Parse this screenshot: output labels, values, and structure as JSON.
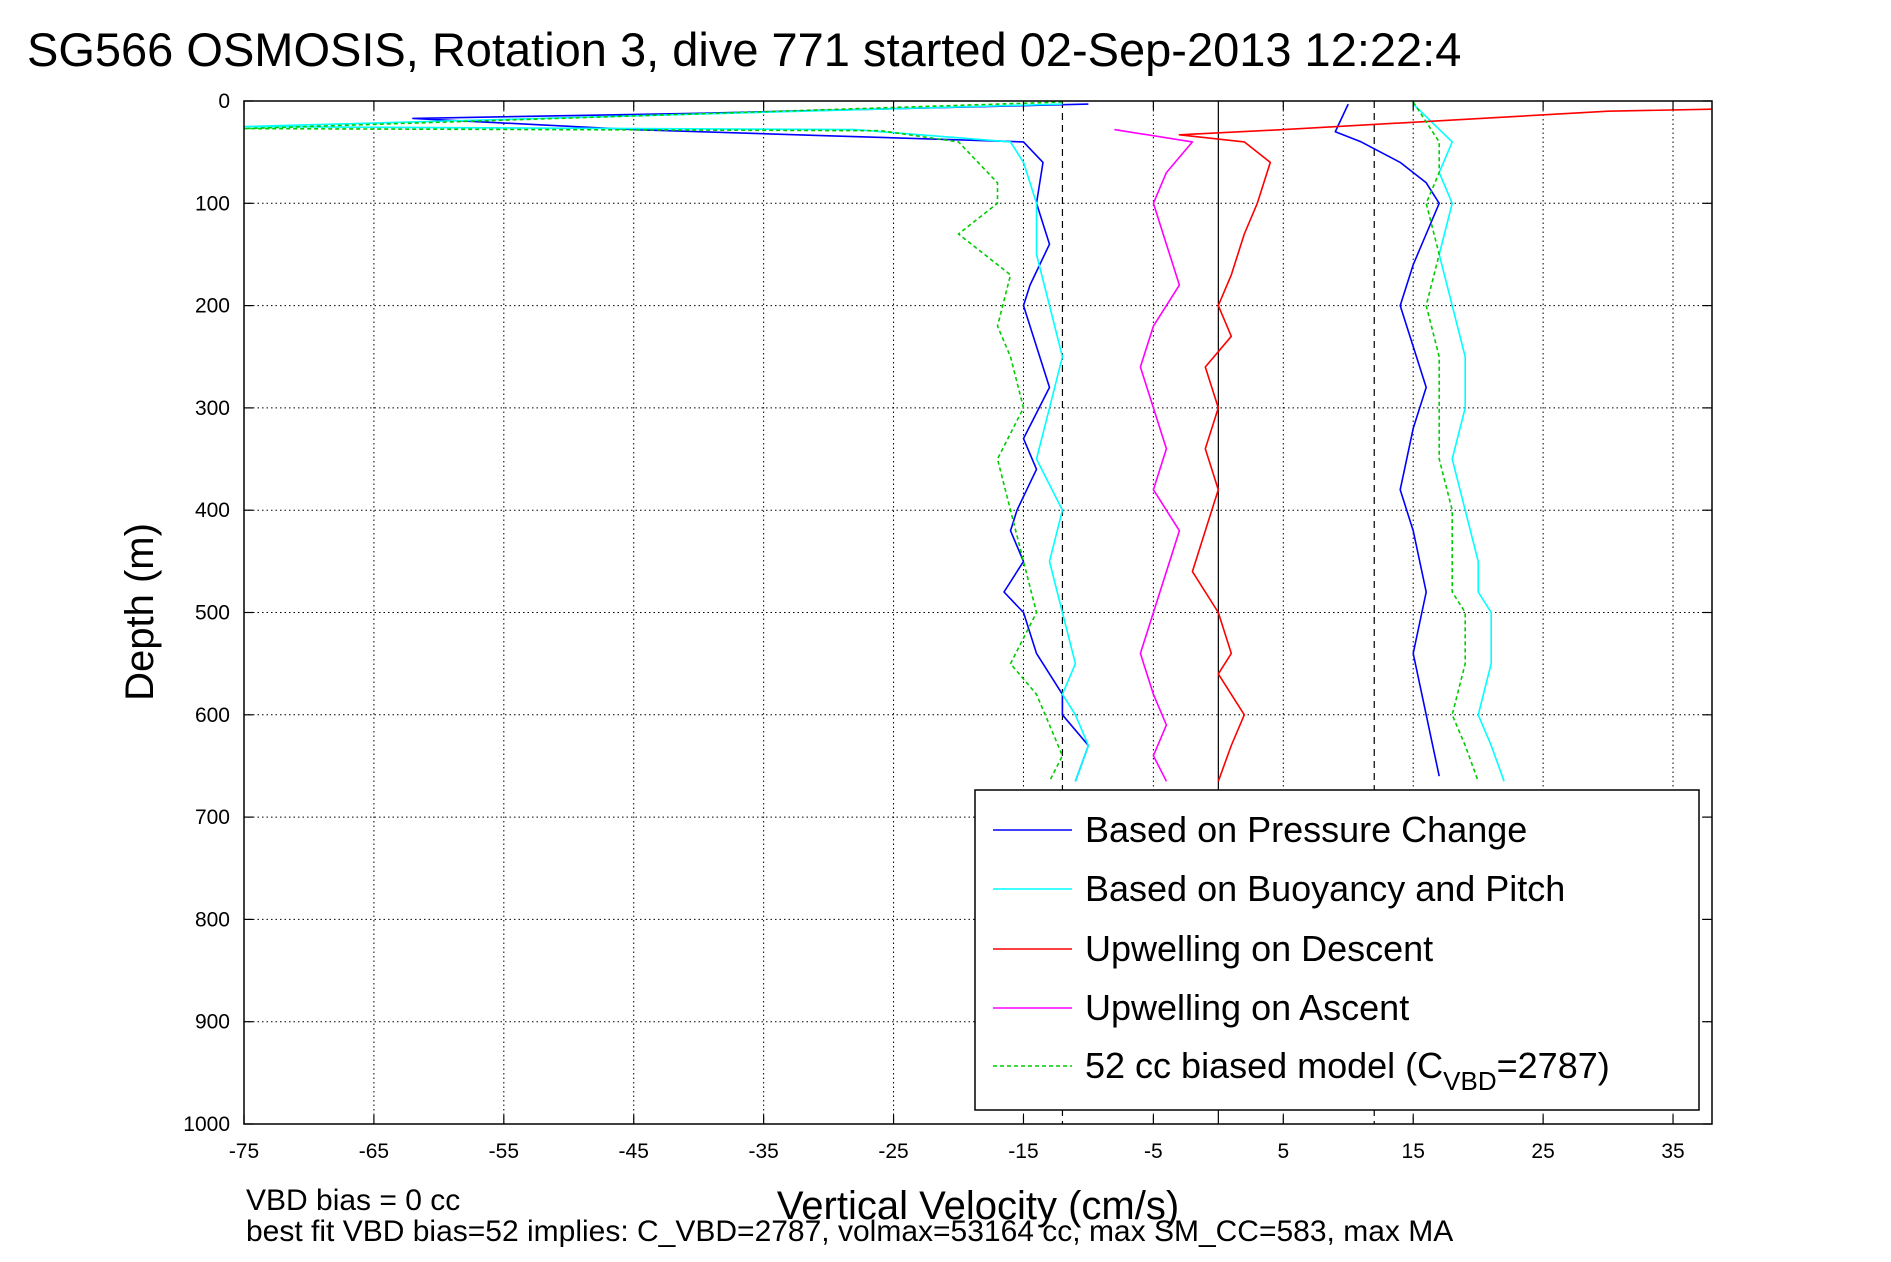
{
  "title": "SG566 OSMOSIS, Rotation 3, dive 771 started 02-Sep-2013 12:22:4",
  "footer": {
    "line1": "VBD bias = 0 cc",
    "line2": "best fit VBD bias=52 implies: C_VBD=2787, volmax=53164 cc, max SM_CC=583, max MA"
  },
  "chart_data": {
    "type": "line",
    "xlabel": "Vertical Velocity (cm/s)",
    "ylabel": "Depth (m)",
    "xlim": [
      -75,
      38
    ],
    "ylim": [
      0,
      1000
    ],
    "y_reversed": true,
    "xticks": [
      -75,
      -65,
      -55,
      -45,
      -35,
      -25,
      -15,
      -5,
      5,
      15,
      25,
      35
    ],
    "yticks": [
      0,
      100,
      200,
      300,
      400,
      500,
      600,
      700,
      800,
      900,
      1000
    ],
    "grid": true,
    "legend_position": "bottom-right",
    "reference_lines": [
      {
        "x": -12,
        "style": "dashed",
        "color": "#000000"
      },
      {
        "x": 0,
        "style": "solid",
        "color": "#000000"
      },
      {
        "x": 12,
        "style": "dashed",
        "color": "#000000"
      }
    ],
    "series": [
      {
        "name": "Based on Pressure Change",
        "color": "#0000ff",
        "style": "solid",
        "segments": [
          {
            "x": [
              -10,
              -40,
              -62,
              -45,
              -30,
              -15,
              -13.5,
              -14,
              -13,
              -14.5,
              -15,
              -14,
              -13,
              -15,
              -14,
              -15.5,
              -16,
              -15,
              -16.5,
              -15,
              -14,
              -13,
              -12,
              -12,
              -10,
              -11
            ],
            "y": [
              3,
              12,
              17,
              28,
              34,
              40,
              60,
              100,
              140,
              180,
              200,
              240,
              280,
              330,
              360,
              400,
              420,
              450,
              480,
              500,
              540,
              560,
              580,
              600,
              630,
              665
            ]
          },
          {
            "x": [
              10,
              9,
              11,
              14,
              16,
              17,
              16,
              15,
              14,
              15,
              16,
              15,
              14,
              15,
              16,
              15,
              16,
              17
            ],
            "y": [
              3,
              30,
              40,
              60,
              80,
              100,
              130,
              160,
              200,
              240,
              280,
              320,
              380,
              420,
              480,
              540,
              600,
              660
            ]
          }
        ]
      },
      {
        "name": "Based on Buoyancy and Pitch",
        "color": "#00ffff",
        "style": "solid",
        "segments": [
          {
            "x": [
              -12,
              -75,
              -28,
              -16,
              -15,
              -14,
              -14,
              -13,
              -12,
              -13,
              -14,
              -12,
              -13,
              -12,
              -11,
              -12,
              -11,
              -10,
              -11
            ],
            "y": [
              3,
              25,
              28,
              40,
              60,
              100,
              150,
              200,
              250,
              300,
              350,
              400,
              450,
              500,
              550,
              580,
              600,
              630,
              665
            ]
          },
          {
            "x": [
              15,
              18,
              17,
              18,
              17,
              18,
              19,
              19,
              18,
              19,
              20,
              20,
              21,
              21,
              20,
              21,
              22
            ],
            "y": [
              3,
              40,
              70,
              100,
              150,
              200,
              250,
              300,
              350,
              400,
              450,
              480,
              500,
              550,
              600,
              630,
              665
            ]
          }
        ]
      },
      {
        "name": "Upwelling on Descent",
        "color": "#ff0000",
        "style": "solid",
        "segments": [
          {
            "x": [
              38,
              30,
              5,
              -3,
              2,
              4,
              3,
              2,
              1,
              0,
              1,
              -1,
              0,
              -1,
              0,
              -1,
              -2,
              0,
              1,
              0,
              2,
              1,
              0
            ],
            "y": [
              8,
              10,
              28,
              33,
              40,
              60,
              100,
              130,
              170,
              200,
              230,
              260,
              300,
              340,
              380,
              420,
              460,
              500,
              540,
              560,
              600,
              630,
              665
            ]
          }
        ]
      },
      {
        "name": "Upwelling on Ascent",
        "color": "#ff00ff",
        "style": "solid",
        "segments": [
          {
            "x": [
              -8,
              -2,
              -4,
              -5,
              -4,
              -3,
              -5,
              -6,
              -5,
              -4,
              -5,
              -3,
              -4,
              -5,
              -6,
              -5,
              -4,
              -5,
              -4
            ],
            "y": [
              28,
              40,
              70,
              100,
              140,
              180,
              220,
              260,
              300,
              340,
              380,
              420,
              460,
              500,
              540,
              580,
              610,
              640,
              665
            ]
          }
        ]
      },
      {
        "name": "52 cc biased model (C_VBD=2787)",
        "legend_main": "52 cc biased model (C",
        "legend_sub": "VBD",
        "legend_tail": "=2787)",
        "color": "#00cc00",
        "style": "dashed",
        "segments": [
          {
            "x": [
              -12,
              -75,
              -26,
              -20,
              -17,
              -17,
              -20,
              -16,
              -17,
              -16,
              -15,
              -17,
              -16,
              -15,
              -14,
              -16,
              -14,
              -13,
              -12,
              -13
            ],
            "y": [
              1,
              27,
              29,
              40,
              80,
              100,
              130,
              170,
              220,
              250,
              300,
              350,
              400,
              450,
              500,
              550,
              580,
              610,
              640,
              665
            ]
          },
          {
            "x": [
              15,
              17,
              17,
              16,
              17,
              16,
              17,
              17,
              17,
              18,
              18,
              18,
              19,
              19,
              18,
              19,
              20
            ],
            "y": [
              1,
              40,
              70,
              100,
              150,
              200,
              250,
              300,
              350,
              400,
              450,
              480,
              500,
              550,
              600,
              630,
              665
            ]
          }
        ]
      }
    ]
  }
}
